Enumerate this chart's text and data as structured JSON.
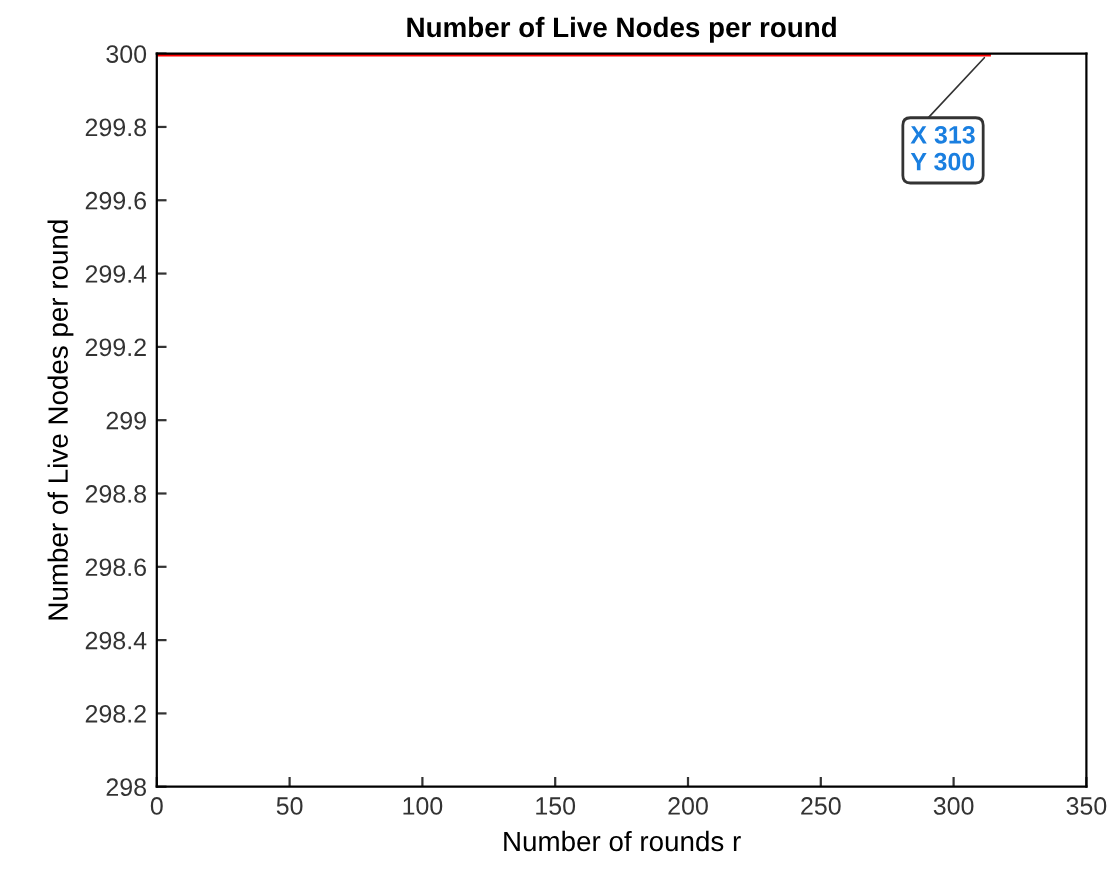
{
  "chart_data": {
    "type": "line",
    "title": "Number of Live Nodes per round",
    "xlabel": "Number of rounds r",
    "ylabel": "Number of Live Nodes per round",
    "x": [
      0,
      313
    ],
    "series": [
      {
        "color": "#ff0000",
        "values": [
          300,
          300
        ]
      }
    ],
    "annotations": [
      {
        "text": "X 313\nY 300",
        "x": 313,
        "y": 300
      }
    ],
    "xlim": [
      0,
      350
    ],
    "xticks": [
      0,
      50,
      100,
      150,
      200,
      250,
      300,
      350
    ],
    "ylim": [
      298,
      300
    ],
    "yticks": [
      298,
      298.2,
      298.4,
      298.6,
      298.8,
      299,
      299.2,
      299.4,
      299.6,
      299.8,
      300
    ],
    "grid": false,
    "legend": false,
    "marker": "none",
    "line_style": "solid"
  }
}
